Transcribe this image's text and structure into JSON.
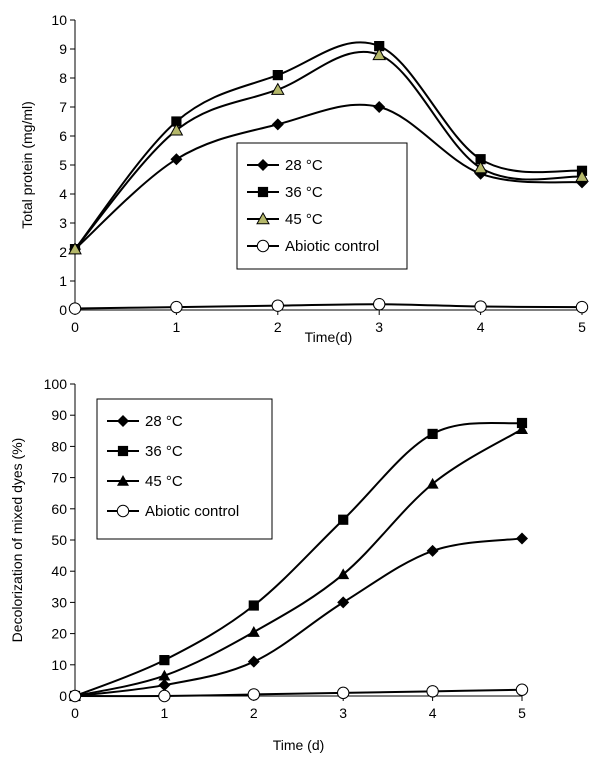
{
  "chart_data": [
    {
      "type": "line",
      "title": "",
      "xlabel": "Time(d)",
      "ylabel": "Total protein (mg/ml)",
      "x": [
        0,
        1,
        2,
        3,
        4,
        5
      ],
      "xlim": [
        0,
        5
      ],
      "ylim": [
        0,
        10
      ],
      "xticks": [
        "0",
        "1",
        "2",
        "3",
        "4",
        "5"
      ],
      "yticks": [
        "0",
        "1",
        "2",
        "3",
        "4",
        "5",
        "6",
        "7",
        "8",
        "9",
        "10"
      ],
      "grid": false,
      "legend_position": "center",
      "series": [
        {
          "name": "28 °C",
          "marker": "diamond",
          "values": [
            2.1,
            5.2,
            6.4,
            7.0,
            4.7,
            4.4
          ]
        },
        {
          "name": "36 °C",
          "marker": "square",
          "values": [
            2.1,
            6.5,
            8.1,
            9.1,
            5.2,
            4.8
          ]
        },
        {
          "name": "45 °C",
          "marker": "triangle-olive",
          "values": [
            2.1,
            6.2,
            7.6,
            8.8,
            4.9,
            4.6
          ]
        },
        {
          "name": "Abiotic control",
          "marker": "open-circle",
          "values": [
            0.05,
            0.1,
            0.15,
            0.2,
            0.12,
            0.1
          ]
        }
      ]
    },
    {
      "type": "line",
      "title": "",
      "xlabel": "Time (d)",
      "ylabel": "Decolorization of mixed dyes (%)",
      "x": [
        0,
        1,
        2,
        3,
        4,
        5
      ],
      "xlim": [
        0,
        5
      ],
      "ylim": [
        0,
        100
      ],
      "xticks": [
        "0",
        "1",
        "2",
        "3",
        "4",
        "5"
      ],
      "yticks": [
        "0",
        "10",
        "20",
        "30",
        "40",
        "50",
        "60",
        "70",
        "80",
        "90",
        "100"
      ],
      "grid": false,
      "legend_position": "top-left",
      "series": [
        {
          "name": "28 °C",
          "marker": "diamond",
          "values": [
            0,
            3.5,
            11,
            30,
            46.5,
            50.5
          ]
        },
        {
          "name": "36 °C",
          "marker": "square",
          "values": [
            0,
            11.5,
            29,
            56.5,
            84,
            87.5
          ]
        },
        {
          "name": "45 °C",
          "marker": "triangle",
          "values": [
            0,
            6.5,
            20.5,
            39,
            68,
            85.5
          ]
        },
        {
          "name": "Abiotic control",
          "marker": "open-circle",
          "values": [
            0,
            0,
            0.5,
            1,
            1.5,
            2
          ]
        }
      ]
    }
  ]
}
